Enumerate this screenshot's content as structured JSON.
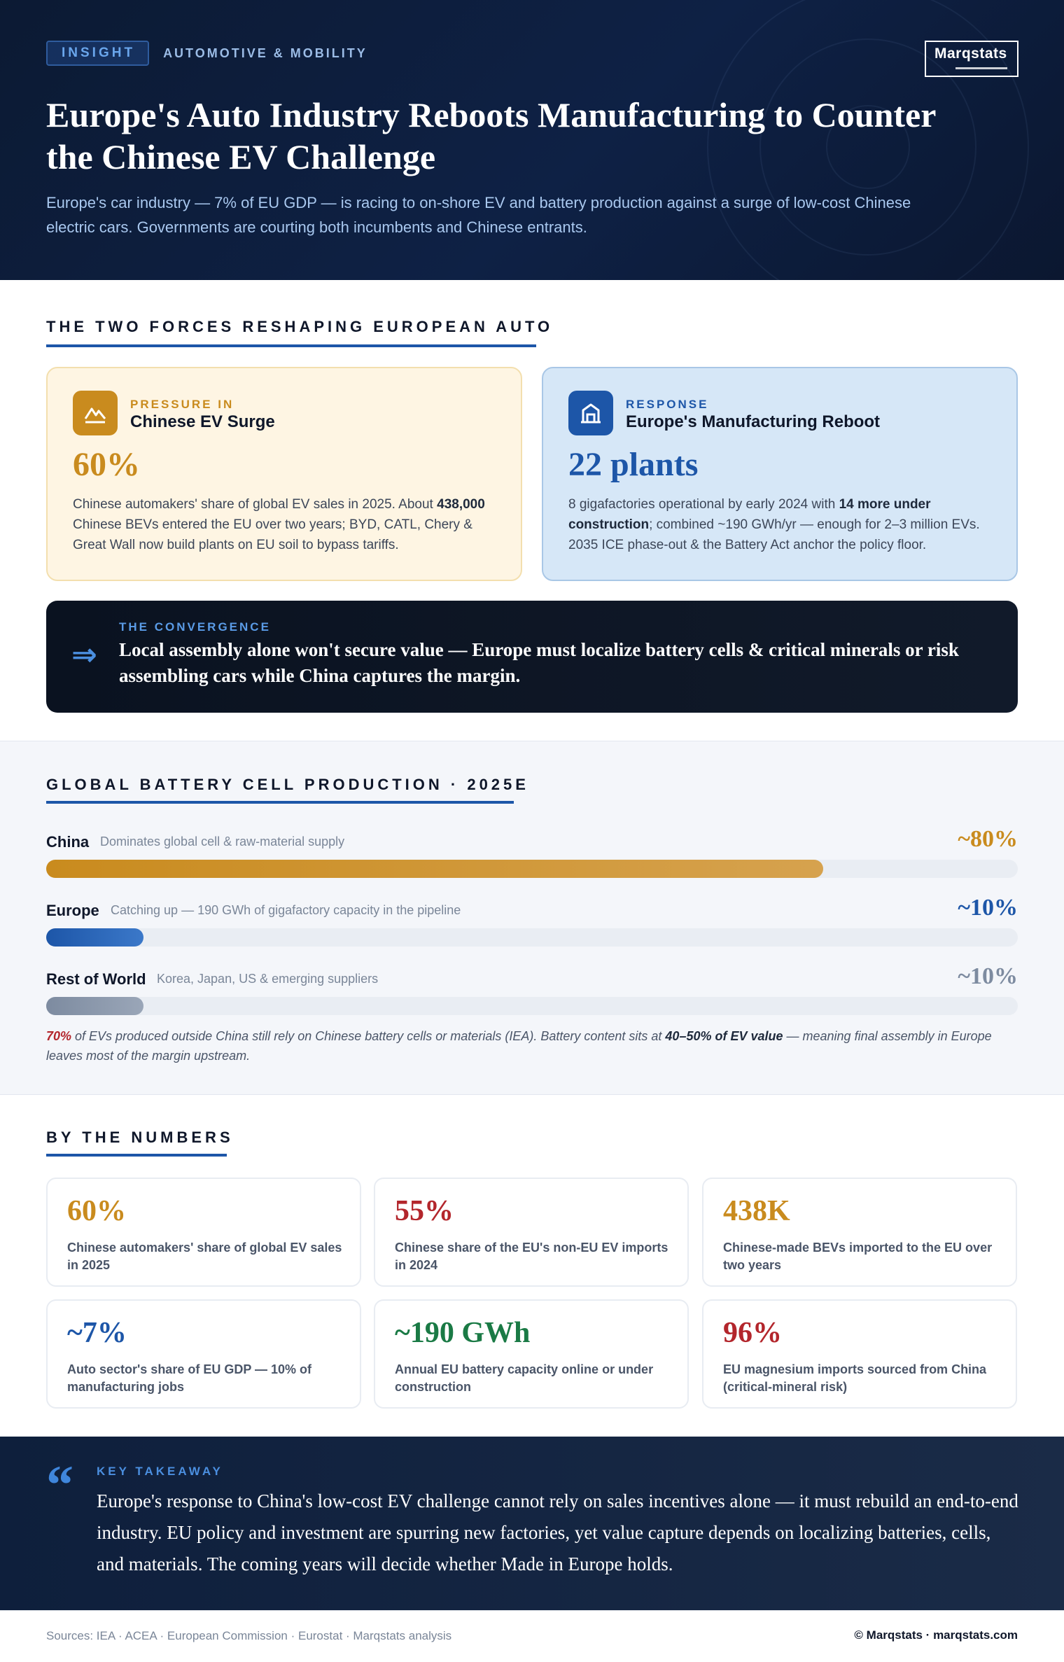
{
  "header": {
    "badge": "INSIGHT",
    "category": "AUTOMOTIVE & MOBILITY",
    "logo": "Marqstats",
    "title": "Europe's Auto Industry Reboots Manufacturing to Counter the Chinese EV Challenge",
    "subtitle": "Europe's car industry — 7% of EU GDP — is racing to on-shore EV and battery production against a surge of low-cost Chinese electric cars. Governments are courting both incumbents and Chinese entrants."
  },
  "forces": {
    "section_title": "THE TWO FORCES RESHAPING EUROPEAN AUTO",
    "pressure": {
      "icon": "mountain-icon",
      "kicker": "PRESSURE IN",
      "heading": "Chinese EV Surge",
      "big": "60%",
      "body_1": "Chinese automakers' share of global EV sales in 2025. About ",
      "body_bold": "438,000",
      "body_2": " Chinese BEVs entered the EU over two years; BYD, CATL, Chery & Great Wall now build plants on EU soil to bypass tariffs."
    },
    "response": {
      "icon": "factory-icon",
      "kicker": "RESPONSE",
      "heading": "Europe's Manufacturing Reboot",
      "big": "22 plants",
      "body_1": "8 gigafactories operational by early 2024 with ",
      "body_bold": "14 more under construction",
      "body_2": "; combined ~190 GWh/yr — enough for 2–3 million EVs. 2035 ICE phase-out & the Battery Act anchor the policy floor."
    },
    "convergence": {
      "icon": "double-arrow-icon",
      "arrow": "⇒",
      "kicker": "THE CONVERGENCE",
      "text": "Local assembly alone won't secure value — Europe must localize battery cells & critical minerals or risk assembling cars while China captures the margin."
    }
  },
  "battery": {
    "section_title": "GLOBAL BATTERY CELL PRODUCTION · 2025E",
    "rows": [
      {
        "name": "China",
        "desc": "Dominates global cell & raw-material supply",
        "value_label": "~80%",
        "share": 0.8,
        "color": "#c98b1e",
        "color2": "#d6a24e"
      },
      {
        "name": "Europe",
        "desc": "Catching up — 190 GWh of gigafactory capacity in the pipeline",
        "value_label": "~10%",
        "share": 0.1,
        "color": "#1d56a8",
        "color2": "#3b78c9"
      },
      {
        "name": "Rest of World",
        "desc": "Korea, Japan, US & emerging suppliers",
        "value_label": "~10%",
        "share": 0.1,
        "color": "#7d8ba0",
        "color2": "#9aa6b8"
      }
    ],
    "note_red": "70%",
    "note_1": " of EVs produced outside China still rely on Chinese battery cells or materials (IEA). Battery content sits at ",
    "note_bold": "40–50% of EV value",
    "note_2": " — meaning final assembly in Europe leaves most of the margin upstream."
  },
  "numbers": {
    "section_title": "BY THE NUMBERS",
    "stats": [
      {
        "value": "60%",
        "label": "Chinese automakers' share of global EV sales in 2025",
        "color": "#c98b1e"
      },
      {
        "value": "55%",
        "label": "Chinese share of the EU's non-EU EV imports in 2024",
        "color": "#b3262c"
      },
      {
        "value": "438K",
        "label": "Chinese-made BEVs imported to the EU over two years",
        "color": "#c98b1e"
      },
      {
        "value": "~7%",
        "label": "Auto sector's share of EU GDP — 10% of manufacturing jobs",
        "color": "#1d56a8"
      },
      {
        "value": "~190 GWh",
        "label": "Annual EU battery capacity online or under construction",
        "color": "#1a7a45"
      },
      {
        "value": "96%",
        "label": "EU magnesium imports sourced from China (critical-mineral risk)",
        "color": "#b3262c"
      }
    ]
  },
  "takeaway": {
    "quote_mark": "“",
    "kicker": "KEY TAKEAWAY",
    "text": "Europe's response to China's low-cost EV challenge cannot rely on sales incentives alone — it must rebuild an end-to-end industry. EU policy and investment are spurring new factories, yet value capture depends on localizing batteries, cells, and materials. The coming years will decide whether Made in Europe holds."
  },
  "footer": {
    "sources": "Sources: IEA · ACEA · European Commission · Eurostat · Marqstats analysis",
    "copyright": "© Marqstats · marqstats.com"
  }
}
